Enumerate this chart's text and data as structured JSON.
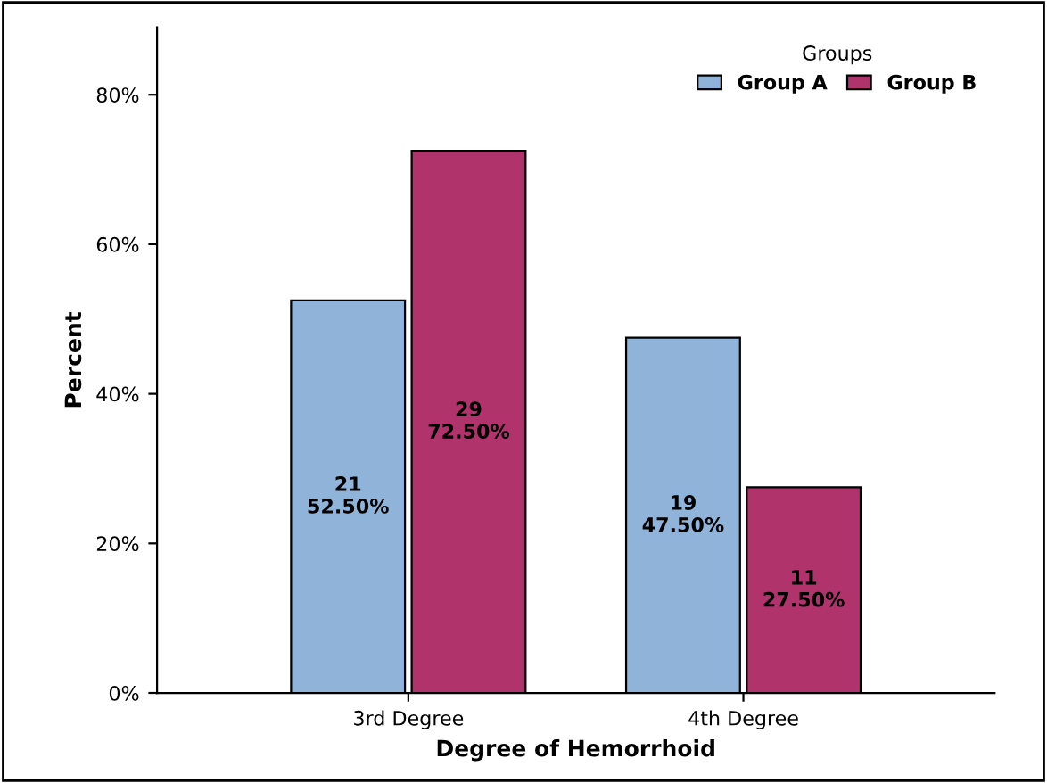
{
  "chart_data": {
    "type": "bar",
    "xlabel": "Degree of Hemorrhoid",
    "ylabel": "Percent",
    "legend_title": "Groups",
    "legend": "top right",
    "grid": false,
    "categories": [
      "3rd Degree",
      "4th Degree"
    ],
    "series": [
      {
        "name": "Group A",
        "color": "#8fb3d9",
        "values": [
          52.5,
          47.5
        ],
        "value_labels": [
          "21\n52.50%",
          "19\n47.50%"
        ]
      },
      {
        "name": "Group B",
        "color": "#b0336b",
        "values": [
          72.5,
          27.5
        ],
        "value_labels": [
          "29\n72.50%",
          "11\n27.50%"
        ]
      }
    ],
    "ylim": [
      0,
      89
    ],
    "yticks": [
      {
        "value": 0,
        "label": "0%"
      },
      {
        "value": 20,
        "label": "20%"
      },
      {
        "value": 40,
        "label": "40%"
      },
      {
        "value": 60,
        "label": "60%"
      },
      {
        "value": 80,
        "label": "80%"
      }
    ]
  }
}
